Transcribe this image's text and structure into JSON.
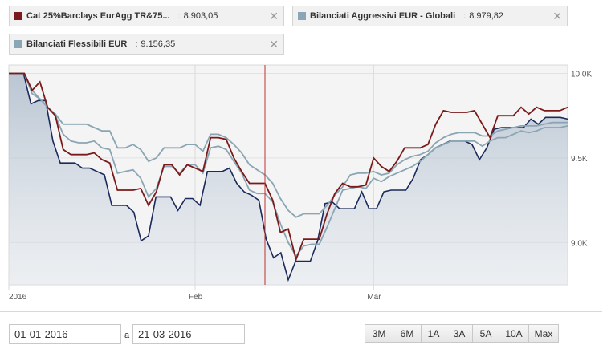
{
  "legend": [
    {
      "name": "Cat 25%Barclays EurAgg TR&75...",
      "value": "8.903,05",
      "color": "#7a1a1a"
    },
    {
      "name": "Bilanciati Aggressivi EUR - Globali",
      "value": "8.979,82",
      "color": "#8aa5b3"
    },
    {
      "name": "Bilanciati Flessibili EUR",
      "value": "9.156,35",
      "color": "#8aa5b3"
    }
  ],
  "legend_sep": ":",
  "date_from": "01-01-2016",
  "date_to": "21-03-2016",
  "date_sep": "a",
  "range_buttons": [
    "3M",
    "6M",
    "1A",
    "3A",
    "5A",
    "10A",
    "Max"
  ],
  "chart_data": {
    "type": "line",
    "x_labels": [
      "2016",
      "Feb",
      "Mar"
    ],
    "y_ticks": [
      "10.0K",
      "9.5K",
      "9.0K"
    ],
    "ylim": [
      8750,
      10050
    ],
    "cursor_index": 33,
    "series": [
      {
        "name": "Cat 25%Barclays EurAgg TR&75...",
        "color": "#7a1a1a",
        "fill": false,
        "values": [
          10000,
          10000,
          10000,
          9900,
          9950,
          9800,
          9750,
          9550,
          9520,
          9520,
          9520,
          9530,
          9490,
          9470,
          9310,
          9310,
          9310,
          9320,
          9220,
          9300,
          9460,
          9460,
          9400,
          9460,
          9440,
          9420,
          9620,
          9620,
          9610,
          9500,
          9420,
          9350,
          9350,
          9350,
          9250,
          9060,
          9080,
          8900,
          9020,
          9020,
          9020,
          9170,
          9290,
          9350,
          9330,
          9330,
          9340,
          9500,
          9450,
          9420,
          9480,
          9560,
          9560,
          9560,
          9580,
          9700,
          9780,
          9770,
          9770,
          9770,
          9780,
          9700,
          9620,
          9750,
          9750,
          9750,
          9800,
          9760,
          9800,
          9780,
          9780,
          9780,
          9800
        ]
      },
      {
        "name": "Bilanciati Aggressivi EUR - Globali",
        "color": "#8aa5b3",
        "fill": false,
        "values": [
          10000,
          10000,
          10000,
          9880,
          9850,
          9800,
          9750,
          9640,
          9600,
          9590,
          9590,
          9600,
          9560,
          9550,
          9410,
          9420,
          9430,
          9380,
          9270,
          9320,
          9450,
          9450,
          9410,
          9460,
          9460,
          9410,
          9560,
          9570,
          9550,
          9480,
          9410,
          9310,
          9290,
          9290,
          9240,
          9110,
          9000,
          8920,
          8980,
          8990,
          8990,
          9090,
          9200,
          9310,
          9320,
          9330,
          9320,
          9380,
          9360,
          9390,
          9410,
          9430,
          9450,
          9480,
          9520,
          9560,
          9580,
          9600,
          9600,
          9600,
          9600,
          9570,
          9600,
          9620,
          9620,
          9640,
          9660,
          9650,
          9660,
          9680,
          9680,
          9680,
          9690
        ]
      },
      {
        "name": "Bilanciati Flessibili EUR",
        "color": "#8aa5b3",
        "fill": false,
        "values": [
          10000,
          10000,
          10000,
          9900,
          9850,
          9800,
          9760,
          9700,
          9700,
          9700,
          9700,
          9680,
          9660,
          9660,
          9560,
          9560,
          9580,
          9550,
          9480,
          9500,
          9560,
          9560,
          9560,
          9580,
          9580,
          9540,
          9640,
          9640,
          9620,
          9580,
          9530,
          9460,
          9430,
          9400,
          9350,
          9260,
          9190,
          9150,
          9170,
          9170,
          9170,
          9220,
          9280,
          9330,
          9400,
          9410,
          9410,
          9420,
          9400,
          9410,
          9460,
          9490,
          9510,
          9520,
          9540,
          9590,
          9620,
          9640,
          9650,
          9650,
          9650,
          9630,
          9630,
          9660,
          9670,
          9680,
          9690,
          9690,
          9690,
          9700,
          9710,
          9710,
          9710
        ]
      },
      {
        "name": "",
        "color": "#1b2a5c",
        "fill": true,
        "values": [
          10000,
          10000,
          10000,
          9820,
          9840,
          9840,
          9600,
          9470,
          9470,
          9470,
          9440,
          9440,
          9420,
          9400,
          9220,
          9220,
          9220,
          9180,
          9010,
          9040,
          9270,
          9270,
          9270,
          9190,
          9260,
          9260,
          9220,
          9420,
          9420,
          9420,
          9440,
          9350,
          9300,
          9280,
          9250,
          9020,
          8910,
          8940,
          8780,
          8890,
          8890,
          8890,
          9010,
          9230,
          9240,
          9200,
          9200,
          9200,
          9300,
          9200,
          9200,
          9300,
          9310,
          9310,
          9310,
          9380,
          9490,
          9520,
          9560,
          9580,
          9600,
          9600,
          9600,
          9580,
          9490,
          9560,
          9670,
          9680,
          9680,
          9680,
          9680,
          9730,
          9700,
          9740,
          9740,
          9740,
          9730
        ]
      }
    ]
  }
}
